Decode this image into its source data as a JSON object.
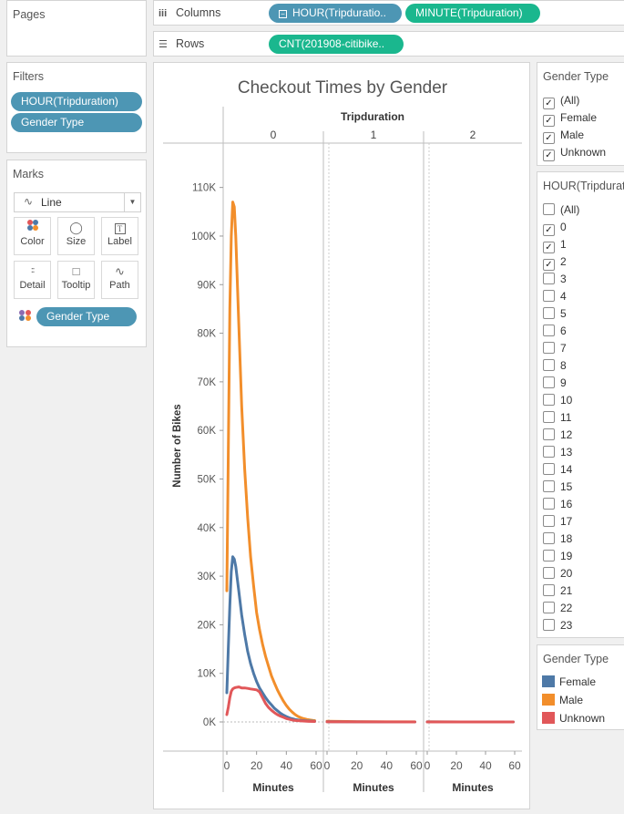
{
  "pages": {
    "title": "Pages"
  },
  "filters": {
    "title": "Filters",
    "pills": [
      "HOUR(Tripduration)",
      "Gender Type"
    ]
  },
  "marks": {
    "title": "Marks",
    "type": "Line",
    "buttons": [
      "Color",
      "Size",
      "Label",
      "Detail",
      "Tooltip",
      "Path"
    ],
    "color_pill": "Gender Type"
  },
  "columns": {
    "label": "Columns",
    "pills": [
      "HOUR(Tripduratio..",
      "MINUTE(Tripduration)"
    ]
  },
  "rows": {
    "label": "Rows",
    "pills": [
      "CNT(201908-citibike.."
    ]
  },
  "gender_filter": {
    "title": "Gender Type",
    "items": [
      {
        "label": "(All)",
        "checked": true
      },
      {
        "label": "Female",
        "checked": true
      },
      {
        "label": "Male",
        "checked": true
      },
      {
        "label": "Unknown",
        "checked": true
      }
    ]
  },
  "hour_filter": {
    "title": "HOUR(Tripdurati",
    "items": [
      {
        "label": "(All)",
        "checked": false
      },
      {
        "label": "0",
        "checked": true
      },
      {
        "label": "1",
        "checked": true
      },
      {
        "label": "2",
        "checked": true
      },
      {
        "label": "3",
        "checked": false
      },
      {
        "label": "4",
        "checked": false
      },
      {
        "label": "5",
        "checked": false
      },
      {
        "label": "6",
        "checked": false
      },
      {
        "label": "7",
        "checked": false
      },
      {
        "label": "8",
        "checked": false
      },
      {
        "label": "9",
        "checked": false
      },
      {
        "label": "10",
        "checked": false
      },
      {
        "label": "11",
        "checked": false
      },
      {
        "label": "12",
        "checked": false
      },
      {
        "label": "13",
        "checked": false
      },
      {
        "label": "14",
        "checked": false
      },
      {
        "label": "15",
        "checked": false
      },
      {
        "label": "16",
        "checked": false
      },
      {
        "label": "17",
        "checked": false
      },
      {
        "label": "18",
        "checked": false
      },
      {
        "label": "19",
        "checked": false
      },
      {
        "label": "20",
        "checked": false
      },
      {
        "label": "21",
        "checked": false
      },
      {
        "label": "22",
        "checked": false
      },
      {
        "label": "23",
        "checked": false
      }
    ]
  },
  "legend": {
    "title": "Gender Type",
    "items": [
      {
        "label": "Female",
        "color": "#4e79a7"
      },
      {
        "label": "Male",
        "color": "#f28e2b"
      },
      {
        "label": "Unknown",
        "color": "#e15759"
      }
    ]
  },
  "chart_data": {
    "type": "line",
    "title": "Checkout Times by Gender",
    "ylabel": "Number of Bikes",
    "xlabel": "Minutes",
    "column_header": "Tripduration",
    "panes": [
      "0",
      "1",
      "2"
    ],
    "y_ticks": [
      "0K",
      "10K",
      "20K",
      "30K",
      "40K",
      "50K",
      "60K",
      "70K",
      "80K",
      "90K",
      "100K",
      "110K"
    ],
    "x_ticks": [
      "0",
      "20",
      "40",
      "60"
    ],
    "ylim": [
      0,
      115000
    ],
    "xlim": [
      0,
      60
    ],
    "series": [
      {
        "name": "Male",
        "color": "#f28e2b",
        "panes": [
          [
            [
              0,
              27000
            ],
            [
              1,
              55000
            ],
            [
              2,
              85000
            ],
            [
              3,
              100000
            ],
            [
              4,
              107000
            ],
            [
              5,
              106000
            ],
            [
              6,
              100000
            ],
            [
              8,
              82000
            ],
            [
              10,
              65000
            ],
            [
              12,
              52000
            ],
            [
              14,
              42000
            ],
            [
              16,
              34000
            ],
            [
              18,
              28000
            ],
            [
              20,
              22500
            ],
            [
              22,
              19000
            ],
            [
              24,
              16000
            ],
            [
              26,
              13500
            ],
            [
              28,
              11500
            ],
            [
              30,
              9500
            ],
            [
              32,
              8000
            ],
            [
              34,
              6600
            ],
            [
              36,
              5400
            ],
            [
              38,
              4300
            ],
            [
              40,
              3400
            ],
            [
              42,
              2600
            ],
            [
              44,
              2000
            ],
            [
              46,
              1500
            ],
            [
              48,
              1100
            ],
            [
              50,
              850
            ],
            [
              52,
              650
            ],
            [
              54,
              500
            ],
            [
              56,
              400
            ],
            [
              58,
              300
            ],
            [
              59,
              280
            ]
          ],
          [
            [
              0,
              150
            ],
            [
              20,
              60
            ],
            [
              40,
              20
            ],
            [
              59,
              10
            ]
          ],
          [
            [
              0,
              20
            ],
            [
              59,
              5
            ]
          ]
        ]
      },
      {
        "name": "Female",
        "color": "#4e79a7",
        "panes": [
          [
            [
              0,
              6000
            ],
            [
              1,
              15000
            ],
            [
              2,
              24000
            ],
            [
              3,
              31000
            ],
            [
              4,
              34000
            ],
            [
              5,
              33500
            ],
            [
              6,
              32000
            ],
            [
              8,
              27000
            ],
            [
              10,
              22000
            ],
            [
              12,
              18000
            ],
            [
              14,
              14500
            ],
            [
              16,
              12000
            ],
            [
              18,
              10000
            ],
            [
              20,
              8300
            ],
            [
              22,
              7000
            ],
            [
              24,
              6000
            ],
            [
              26,
              5000
            ],
            [
              28,
              4200
            ],
            [
              30,
              3500
            ],
            [
              32,
              2800
            ],
            [
              34,
              2300
            ],
            [
              36,
              1800
            ],
            [
              38,
              1400
            ],
            [
              40,
              1100
            ],
            [
              42,
              850
            ],
            [
              44,
              650
            ],
            [
              46,
              500
            ],
            [
              48,
              400
            ],
            [
              50,
              300
            ],
            [
              54,
              200
            ],
            [
              59,
              150
            ]
          ],
          [
            [
              0,
              50
            ],
            [
              20,
              20
            ],
            [
              40,
              8
            ],
            [
              59,
              5
            ]
          ],
          [
            [
              0,
              10
            ],
            [
              59,
              3
            ]
          ]
        ]
      },
      {
        "name": "Unknown",
        "color": "#e15759",
        "panes": [
          [
            [
              0,
              1500
            ],
            [
              1,
              3000
            ],
            [
              2,
              5000
            ],
            [
              3,
              6300
            ],
            [
              4,
              6800
            ],
            [
              5,
              7000
            ],
            [
              6,
              7100
            ],
            [
              8,
              7200
            ],
            [
              10,
              7000
            ],
            [
              12,
              7000
            ],
            [
              14,
              6900
            ],
            [
              16,
              6800
            ],
            [
              18,
              6700
            ],
            [
              20,
              6600
            ],
            [
              22,
              6200
            ],
            [
              24,
              5000
            ],
            [
              26,
              3800
            ],
            [
              28,
              3000
            ],
            [
              30,
              2400
            ],
            [
              32,
              1900
            ],
            [
              34,
              1500
            ],
            [
              36,
              1200
            ],
            [
              38,
              950
            ],
            [
              40,
              700
            ],
            [
              42,
              550
            ],
            [
              44,
              400
            ],
            [
              46,
              300
            ],
            [
              50,
              200
            ],
            [
              55,
              120
            ],
            [
              59,
              100
            ]
          ],
          [
            [
              0,
              20
            ],
            [
              59,
              5
            ]
          ],
          [
            [
              0,
              5
            ],
            [
              59,
              2
            ]
          ]
        ]
      }
    ]
  }
}
